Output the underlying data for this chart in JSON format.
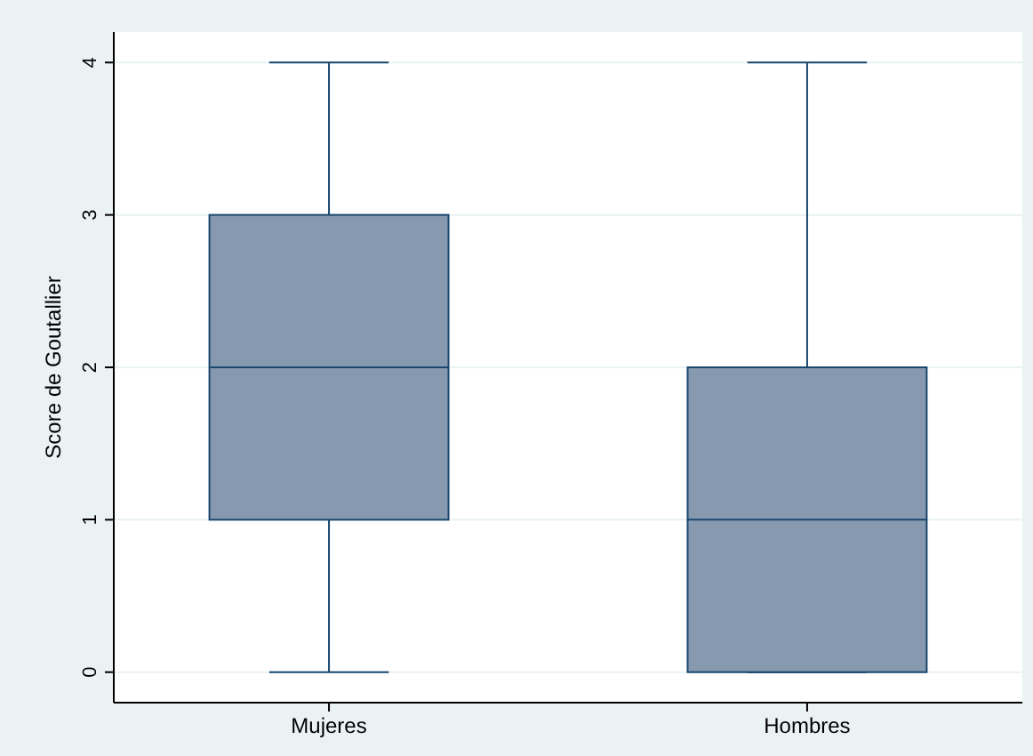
{
  "chart_data": {
    "type": "box",
    "ylabel": "Score de Goutallier",
    "categories": [
      "Mujeres",
      "Hombres"
    ],
    "color": "#8799af",
    "boxes": [
      {
        "low": 0,
        "q1": 1,
        "median": 2,
        "q3": 3,
        "high": 4
      },
      {
        "low": 0,
        "q1": 0,
        "median": 1,
        "q3": 2,
        "high": 4
      }
    ],
    "ylim": [
      -0.2,
      4.2
    ],
    "yticks": [
      0,
      1,
      2,
      3,
      4
    ],
    "grid": "y"
  }
}
